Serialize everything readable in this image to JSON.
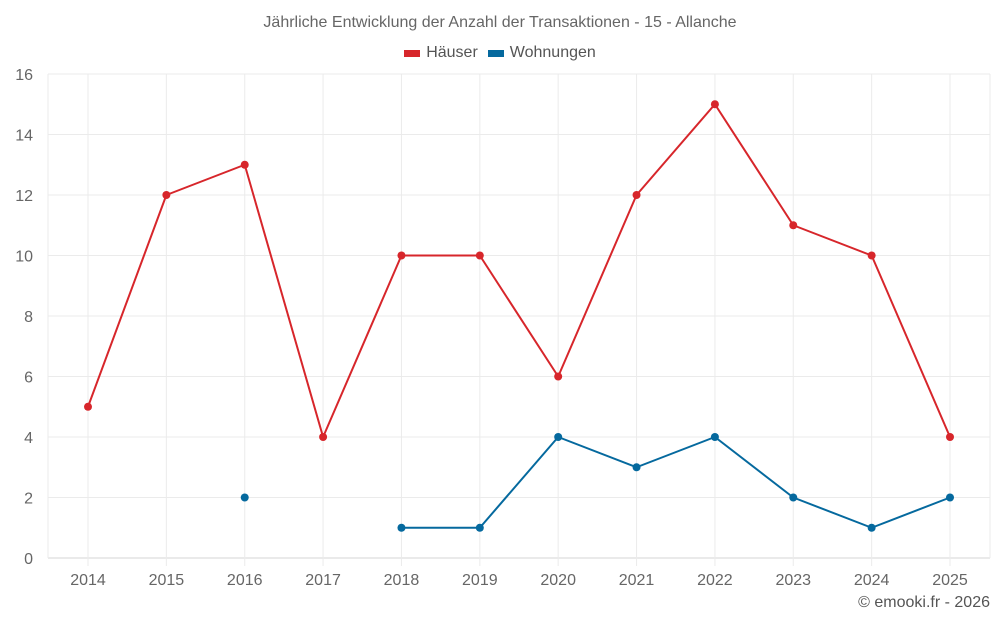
{
  "chart_data": {
    "type": "line",
    "title": "Jährliche Entwicklung der Anzahl der Transaktionen - 15 - Allanche",
    "categories": [
      "2014",
      "2015",
      "2016",
      "2017",
      "2018",
      "2019",
      "2020",
      "2021",
      "2022",
      "2023",
      "2024",
      "2025"
    ],
    "series": [
      {
        "name": "Häuser",
        "color": "#d7262b",
        "values": [
          5,
          12,
          13,
          4,
          10,
          10,
          6,
          12,
          15,
          11,
          10,
          4
        ]
      },
      {
        "name": "Wohnungen",
        "color": "#05699e",
        "values": [
          null,
          null,
          2,
          null,
          1,
          1,
          4,
          3,
          4,
          2,
          1,
          2
        ]
      }
    ],
    "xlabel": "",
    "ylabel": "",
    "ylim": [
      0,
      16
    ],
    "yticks": [
      0,
      2,
      4,
      6,
      8,
      10,
      12,
      14,
      16
    ],
    "grid": true,
    "legend_position": "top"
  },
  "credit": "© emooki.fr - 2026"
}
